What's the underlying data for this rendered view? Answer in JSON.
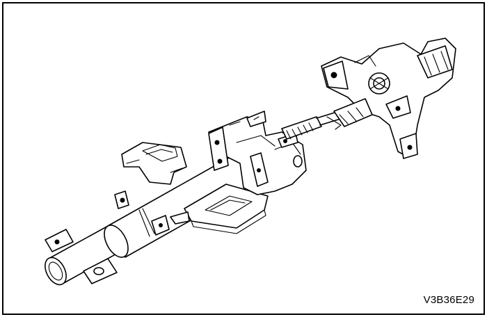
{
  "figure": {
    "code": "V3B36E29"
  },
  "parts": [
    "steering-column-tube",
    "lower-mounting-bracket",
    "upper-mounting-bracket",
    "column-support-housing",
    "steering-shaft-splines",
    "lock-housing-assembly"
  ]
}
